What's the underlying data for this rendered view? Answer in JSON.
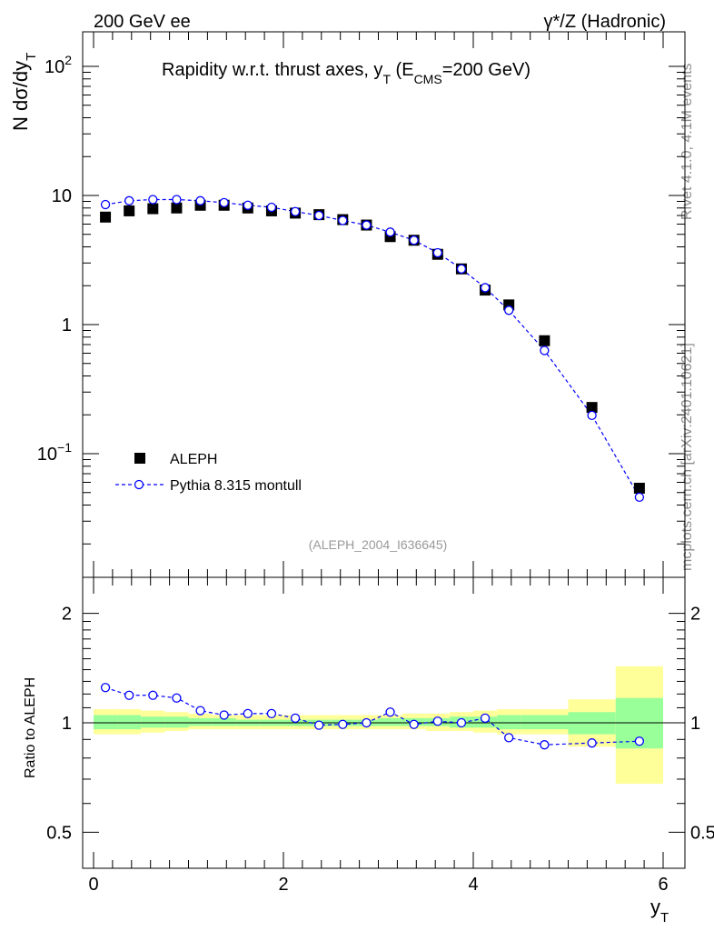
{
  "header": {
    "left": "200 GeV ee",
    "right": "γ*/Z (Hadronic)"
  },
  "side_labels": {
    "rivet": "Rivet 4.1.0,  4.1M events",
    "mcplots": "mcplots.cern.ch [arXiv:2401.10621]"
  },
  "colors": {
    "data": "#000000",
    "mc": "#0000ff",
    "band_outer": "#ffff99",
    "band_inner": "#99ff99",
    "side_text": "#8c8c8c"
  },
  "chart_data": [
    {
      "type": "scatter",
      "title": "Rapidity w.r.t. thrust axes, y",
      "title_sub": "T",
      "title_suffix_pre": " (E",
      "title_suffix_sub": "CMS",
      "title_suffix_post": "=200 GeV)",
      "ylabel": "N  dσ/dy",
      "ylabel_sub": "T",
      "yscale": "log",
      "ylim": [
        0.012,
        200
      ],
      "xlim": [
        -0.15,
        6.2
      ],
      "y_ticks": [
        {
          "value": 0.1,
          "label": "10",
          "sup": "−1"
        },
        {
          "value": 1,
          "label": "1",
          "sup": ""
        },
        {
          "value": 10,
          "label": "10",
          "sup": ""
        },
        {
          "value": 100,
          "label": "10",
          "sup": "2"
        }
      ],
      "legend_position": "middle-left",
      "watermark": "(ALEPH_2004_I636645)",
      "series": [
        {
          "name": "ALEPH",
          "marker": "filled-square",
          "x": [
            0.125,
            0.375,
            0.625,
            0.875,
            1.125,
            1.375,
            1.625,
            1.875,
            2.125,
            2.375,
            2.625,
            2.875,
            3.125,
            3.375,
            3.625,
            3.875,
            4.125,
            4.375,
            4.75,
            5.25,
            5.75
          ],
          "values": [
            6.8,
            7.6,
            7.9,
            8.0,
            8.4,
            8.4,
            8.0,
            7.6,
            7.3,
            7.1,
            6.5,
            5.9,
            4.8,
            4.5,
            3.5,
            2.7,
            1.85,
            1.42,
            0.75,
            0.228,
            0.054
          ]
        },
        {
          "name": "Pythia 8.315 montull",
          "marker": "open-circle-dashed-line",
          "x": [
            0.125,
            0.375,
            0.625,
            0.875,
            1.125,
            1.375,
            1.625,
            1.875,
            2.125,
            2.375,
            2.625,
            2.875,
            3.125,
            3.375,
            3.625,
            3.875,
            4.125,
            4.375,
            4.75,
            5.25,
            5.75
          ],
          "values": [
            8.5,
            9.1,
            9.3,
            9.3,
            9.1,
            8.8,
            8.4,
            8.1,
            7.5,
            7.0,
            6.4,
            5.9,
            5.2,
            4.5,
            3.6,
            2.7,
            1.93,
            1.29,
            0.63,
            0.198,
            0.046
          ]
        }
      ]
    },
    {
      "type": "line",
      "ylabel": "Ratio to ALEPH",
      "xlabel": "y",
      "xlabel_sub": "T",
      "ylim": [
        0.4,
        2.4
      ],
      "xlim": [
        -0.15,
        6.2
      ],
      "x_ticks": [
        0,
        2,
        4,
        6
      ],
      "y_ticks": [
        0.5,
        1,
        2
      ],
      "band_edges": [
        0,
        0.25,
        0.5,
        0.75,
        1.0,
        1.25,
        1.5,
        1.75,
        2.0,
        2.25,
        2.5,
        2.75,
        3.0,
        3.25,
        3.5,
        3.75,
        4.0,
        4.25,
        4.5,
        5.0,
        5.5,
        6.0
      ],
      "band_outer": [
        [
          0.93,
          1.09
        ],
        [
          0.93,
          1.09
        ],
        [
          0.94,
          1.08
        ],
        [
          0.95,
          1.07
        ],
        [
          0.96,
          1.06
        ],
        [
          0.96,
          1.05
        ],
        [
          0.96,
          1.05
        ],
        [
          0.96,
          1.05
        ],
        [
          0.96,
          1.05
        ],
        [
          0.96,
          1.05
        ],
        [
          0.96,
          1.05
        ],
        [
          0.96,
          1.05
        ],
        [
          0.96,
          1.05
        ],
        [
          0.96,
          1.06
        ],
        [
          0.95,
          1.06
        ],
        [
          0.95,
          1.07
        ],
        [
          0.94,
          1.08
        ],
        [
          0.93,
          1.09
        ],
        [
          0.93,
          1.09
        ],
        [
          0.86,
          1.16
        ],
        [
          0.68,
          1.43
        ]
      ],
      "band_inner": [
        [
          0.96,
          1.05
        ],
        [
          0.96,
          1.05
        ],
        [
          0.97,
          1.04
        ],
        [
          0.97,
          1.04
        ],
        [
          0.98,
          1.03
        ],
        [
          0.98,
          1.03
        ],
        [
          0.98,
          1.02
        ],
        [
          0.98,
          1.02
        ],
        [
          0.98,
          1.02
        ],
        [
          0.98,
          1.02
        ],
        [
          0.98,
          1.02
        ],
        [
          0.98,
          1.02
        ],
        [
          0.98,
          1.03
        ],
        [
          0.98,
          1.03
        ],
        [
          0.98,
          1.03
        ],
        [
          0.97,
          1.04
        ],
        [
          0.97,
          1.04
        ],
        [
          0.96,
          1.05
        ],
        [
          0.96,
          1.05
        ],
        [
          0.93,
          1.07
        ],
        [
          0.85,
          1.17
        ]
      ],
      "series": [
        {
          "name": "Pythia 8.315 montull / ALEPH",
          "x": [
            0.125,
            0.375,
            0.625,
            0.875,
            1.125,
            1.375,
            1.625,
            1.875,
            2.125,
            2.375,
            2.625,
            2.875,
            3.125,
            3.375,
            3.625,
            3.875,
            4.125,
            4.375,
            4.75,
            5.25,
            5.75
          ],
          "values": [
            1.25,
            1.19,
            1.19,
            1.17,
            1.08,
            1.05,
            1.06,
            1.06,
            1.03,
            0.985,
            0.99,
            1.0,
            1.07,
            0.99,
            1.01,
            1.0,
            1.03,
            0.91,
            0.87,
            0.88,
            0.89
          ]
        }
      ]
    }
  ]
}
